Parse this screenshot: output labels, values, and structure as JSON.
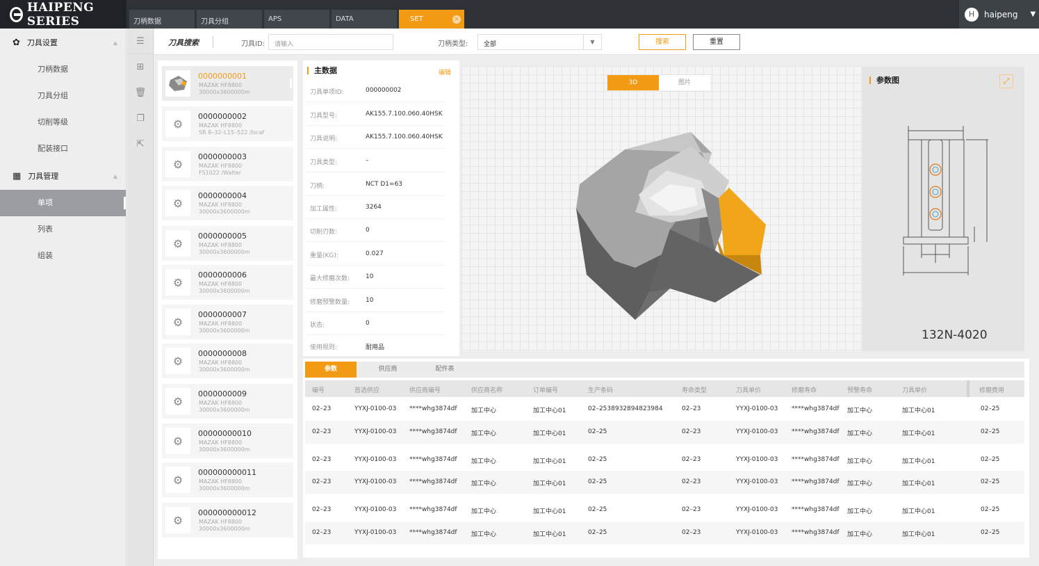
{
  "app": {
    "logo_text": "HAIPENG SERIES"
  },
  "tabs": [
    {
      "label": "刀柄数据"
    },
    {
      "label": "刀具分组"
    },
    {
      "label": "APS"
    },
    {
      "label": "DATA"
    },
    {
      "label": "SET",
      "active": true
    }
  ],
  "user": {
    "initial": "H",
    "name": "haipeng"
  },
  "sidebar": {
    "groups": [
      {
        "label": "刀具设置",
        "icon": "gear-icon",
        "items": [
          "刀柄数据",
          "刀具分组",
          "切削等级",
          "配装接口"
        ]
      },
      {
        "label": "刀具管理",
        "icon": "grid-icon",
        "items": [
          "单项",
          "列表",
          "组装"
        ],
        "active_item": "单项"
      }
    ]
  },
  "search": {
    "title": "刀具搜索",
    "id_label": "刀具ID:",
    "id_placeholder": "请输入",
    "type_label": "刀柄类型:",
    "type_value": "全部",
    "search_button": "搜索",
    "reset_button": "重置"
  },
  "tool_list": [
    {
      "id": "0000000001",
      "line2": "MAZAK HF8800",
      "line3": "30000x3600000m",
      "selected": true
    },
    {
      "id": "0000000002",
      "line2": "MAZAK HF8800",
      "line3": "SR 8–32–L15–522 /Iscaf"
    },
    {
      "id": "0000000003",
      "line2": "MAZAK HF8800",
      "line3": "FS1022 /Walter"
    },
    {
      "id": "0000000004",
      "line2": "MAZAK HF8800",
      "line3": "30000x3600000m"
    },
    {
      "id": "0000000005",
      "line2": "MAZAK HF8800",
      "line3": "30000x3600000m"
    },
    {
      "id": "0000000006",
      "line2": "MAZAK HF8800",
      "line3": "30000x3600000m"
    },
    {
      "id": "0000000007",
      "line2": "MAZAK HF8800",
      "line3": "30000x3600000m"
    },
    {
      "id": "0000000008",
      "line2": "MAZAK HF8800",
      "line3": "30000x3600000m"
    },
    {
      "id": "0000000009",
      "line2": "MAZAK HF8800",
      "line3": "30000x3600000m"
    },
    {
      "id": "00000000010",
      "line2": "MAZAK HF8800",
      "line3": "30000x3600000m"
    },
    {
      "id": "000000000011",
      "line2": "MAZAK HF8800",
      "line3": "30000x3600000m"
    },
    {
      "id": "000000000012",
      "line2": "MAZAK HF8800",
      "line3": "30000x3600000m"
    }
  ],
  "master": {
    "title": "主数据",
    "edit": "编辑",
    "fields": [
      {
        "k": "刀具单项ID:",
        "v": "000000002"
      },
      {
        "k": "刀具型号:",
        "v": "AK155.7.100.060.40HSK"
      },
      {
        "k": "刀具说明:",
        "v": "AK155.7.100.060.40HSK"
      },
      {
        "k": "刀具类型:",
        "v": "–"
      },
      {
        "k": "刀柄:",
        "v": "NCT D1=63"
      },
      {
        "k": "加工属性:",
        "v": "3264"
      },
      {
        "k": "切削刃数:",
        "v": "0"
      },
      {
        "k": "重量(KG):",
        "v": "0.027"
      },
      {
        "k": "最大修磨次数:",
        "v": "10"
      },
      {
        "k": "修磨预警数量:",
        "v": "10"
      },
      {
        "k": "状态:",
        "v": "0"
      },
      {
        "k": "使用规则:",
        "v": "耐用品"
      }
    ]
  },
  "viewer": {
    "tab_3d": "3D",
    "tab_image": "图片",
    "active": "3D"
  },
  "param_diagram": {
    "title": "参数图",
    "code": "132N-4020"
  },
  "bottom_tabs": [
    "参数",
    "供应商",
    "配件表"
  ],
  "table": {
    "headers": [
      "编号",
      "首选供应",
      "供应商编号",
      "供应商名称",
      "订单编号",
      "生产条码",
      "寿命类型",
      "刀具单价",
      "修磨寿命",
      "预警寿命",
      "刀具单价",
      "修磨费用"
    ],
    "rows": [
      [
        "02–23",
        "YYXJ-0100-03",
        "****whg3874df",
        "加工中心",
        "加工中心01",
        "02–2538932894823984",
        "02–23",
        "YYXJ-0100-03",
        "****whg3874df",
        "加工中心",
        "加工中心01",
        "02–25"
      ],
      [
        "02–23",
        "YYXJ-0100-03",
        "****whg3874df",
        "加工中心",
        "加工中心01",
        "02–25",
        "02–23",
        "YYXJ-0100-03",
        "****whg3874df",
        "加工中心",
        "加工中心01",
        "02–25"
      ],
      [
        "02–23",
        "YYXJ-0100-03",
        "****whg3874df",
        "加工中心",
        "加工中心01",
        "02–25",
        "02–23",
        "YYXJ-0100-03",
        "****whg3874df",
        "加工中心",
        "加工中心01",
        "02–25"
      ],
      [
        "02–23",
        "YYXJ-0100-03",
        "****whg3874df",
        "加工中心",
        "加工中心01",
        "02–25",
        "02–23",
        "YYXJ-0100-03",
        "****whg3874df",
        "加工中心",
        "加工中心01",
        "02–25"
      ],
      [
        "02–23",
        "YYXJ-0100-03",
        "****whg3874df",
        "加工中心",
        "加工中心01",
        "02–25",
        "02–23",
        "YYXJ-0100-03",
        "****whg3874df",
        "加工中心",
        "加工中心01",
        "02–25"
      ],
      [
        "02–23",
        "YYXJ-0100-03",
        "****whg3874df",
        "加工中心",
        "加工中心01",
        "02–25",
        "02–23",
        "YYXJ-0100-03",
        "****whg3874df",
        "加工中心",
        "加工中心01",
        "02–25"
      ]
    ]
  },
  "colors": {
    "accent": "#f39a14",
    "topbar": "#2e3236",
    "sidebar_active": "#9a9ea3"
  }
}
